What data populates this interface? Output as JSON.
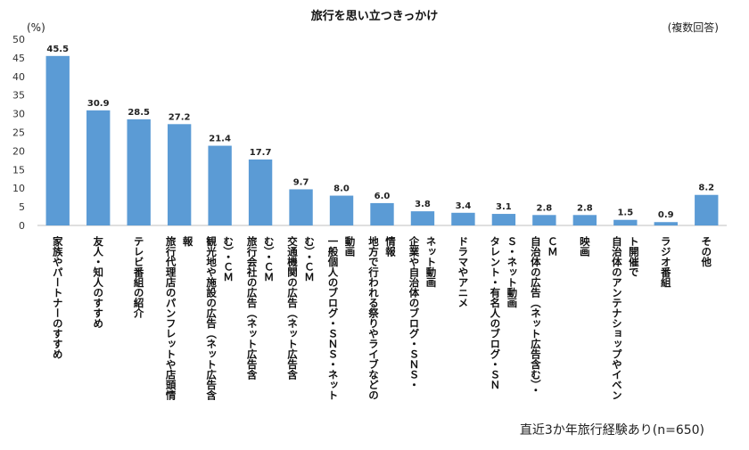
{
  "chart_data": {
    "type": "bar",
    "title": "旅行を思い立つきっかけ",
    "ylabel": "(%)",
    "note": "(複数回答)",
    "sample": "直近3か年旅行経験あり(n=650)",
    "ylim": [
      0,
      50
    ],
    "yticks": [
      0,
      5,
      10,
      15,
      20,
      25,
      30,
      35,
      40,
      45,
      50
    ],
    "grid": false,
    "bar_color": "#5b9bd5",
    "categories": [
      [
        "家族やパートナーのすすめ"
      ],
      [
        "友人・知人のすすめ"
      ],
      [
        "テレビ番組の紹介"
      ],
      [
        "旅行代理店のパンフレットや店頭情",
        "報"
      ],
      [
        "観光地や施設の広告（ネット広告含",
        "む）・ＣＭ"
      ],
      [
        "旅行会社の広告（ネット広告含",
        "む）・ＣＭ"
      ],
      [
        "交通機関の広告（ネット広告含",
        "む）・ＣＭ"
      ],
      [
        "一般個人のブログ・ＳＮＳ・ネット",
        "動画"
      ],
      [
        "地方で行われる祭りやライブなどの",
        "情報"
      ],
      [
        "企業や自治体のブログ・ＳＮＳ・",
        "ネット動画"
      ],
      [
        "ドラマやアニメ"
      ],
      [
        "タレント・有名人のブログ・ＳＮ",
        "Ｓ・ネット動画"
      ],
      [
        "自治体の広告（ネット広告含む）・",
        "ＣＭ"
      ],
      [
        "映画"
      ],
      [
        "自治体のアンテナショップやイベン",
        "ト開催で"
      ],
      [
        "ラジオ番組"
      ],
      [
        "その他"
      ]
    ],
    "values": [
      45.5,
      30.9,
      28.5,
      27.2,
      21.4,
      17.7,
      9.7,
      8.0,
      6.0,
      3.8,
      3.4,
      3.1,
      2.8,
      2.8,
      1.5,
      0.9,
      8.2
    ],
    "value_labels": [
      "45.5",
      "30.9",
      "28.5",
      "27.2",
      "21.4",
      "17.7",
      "9.7",
      "8.0",
      "6.0",
      "3.8",
      "3.4",
      "3.1",
      "2.8",
      "2.8",
      "1.5",
      "0.9",
      "8.2"
    ]
  }
}
